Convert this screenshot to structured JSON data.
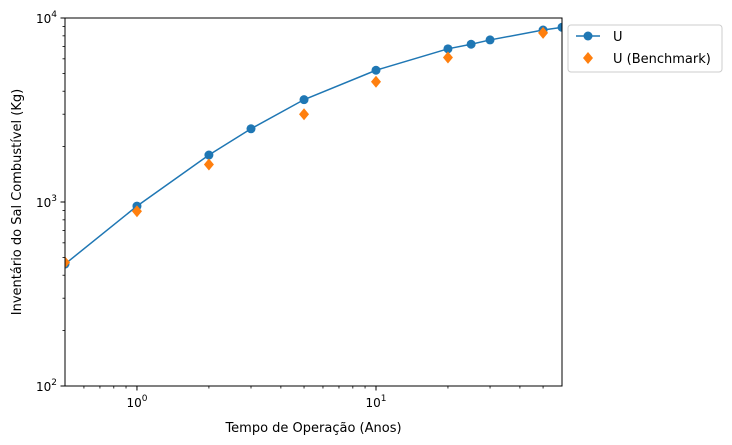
{
  "chart_data": {
    "type": "line",
    "xscale": "log",
    "yscale": "log",
    "xlabel": "Tempo de Operação (Anos)",
    "ylabel": "Inventário do Sal Combustível (Kg)",
    "xlim": [
      0.5,
      60
    ],
    "ylim": [
      100,
      10000
    ],
    "x_ticks": [
      {
        "value": 1,
        "base": "10",
        "exp": "0"
      },
      {
        "value": 10,
        "base": "10",
        "exp": "1"
      }
    ],
    "y_ticks": [
      {
        "value": 100,
        "base": "10",
        "exp": "2"
      },
      {
        "value": 1000,
        "base": "10",
        "exp": "3"
      },
      {
        "value": 10000,
        "base": "10",
        "exp": "4"
      }
    ],
    "series": [
      {
        "name": "U",
        "color": "#1f77b4",
        "marker": "circle",
        "line": true,
        "x": [
          0.5,
          1,
          2,
          3,
          5,
          10,
          20,
          25,
          30,
          50,
          60
        ],
        "y": [
          460,
          950,
          1800,
          2500,
          3600,
          5200,
          6800,
          7200,
          7600,
          8600,
          8900
        ]
      },
      {
        "name": "U (Benchmark)",
        "color": "#ff7f0e",
        "marker": "diamond",
        "line": false,
        "x": [
          0.5,
          1,
          2,
          5,
          10,
          20,
          50
        ],
        "y": [
          470,
          890,
          1600,
          3000,
          4500,
          6100,
          8300
        ]
      }
    ]
  }
}
